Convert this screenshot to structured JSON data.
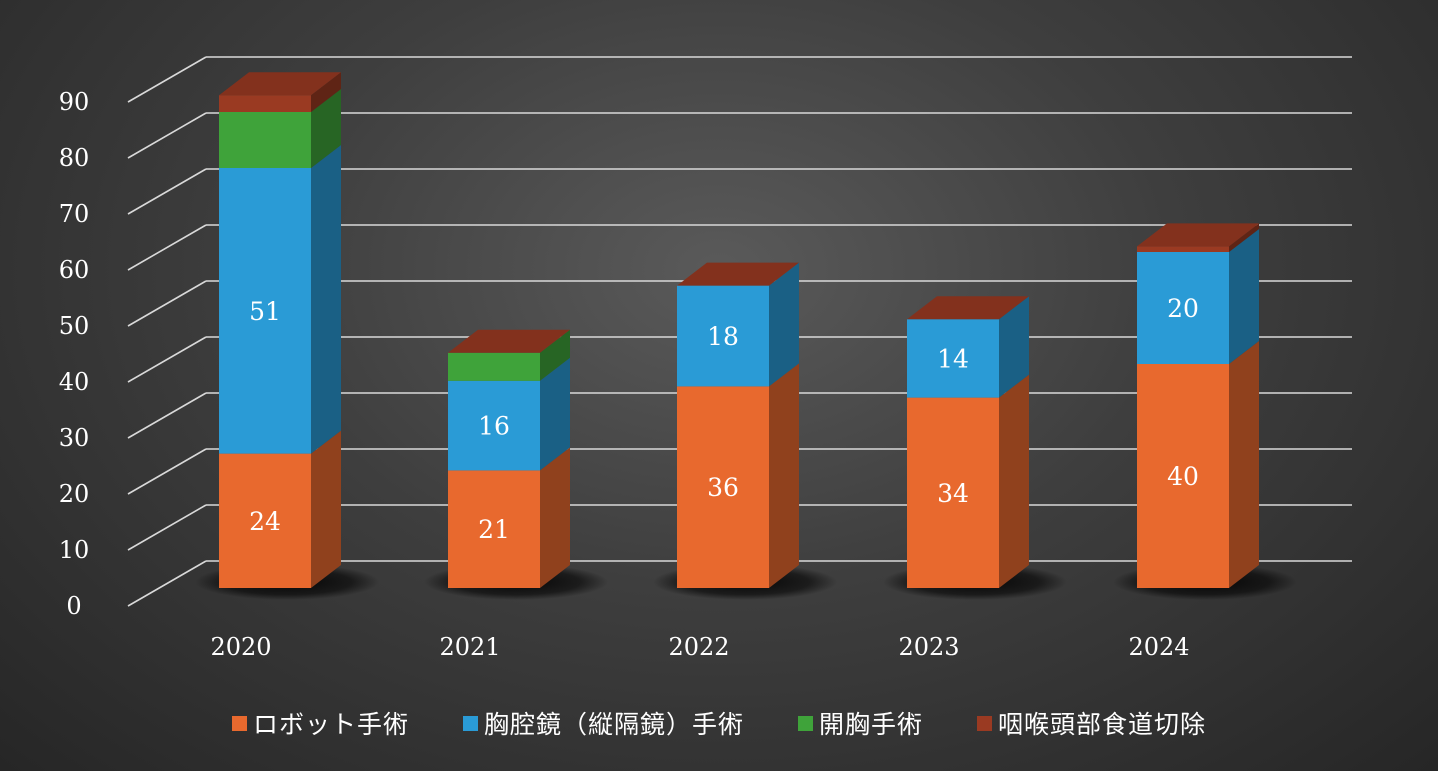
{
  "chart_data": {
    "type": "bar",
    "stacked": true,
    "three_d": true,
    "title": "",
    "xlabel": "",
    "ylabel": "",
    "ylim": [
      0,
      90
    ],
    "yticks": [
      0,
      10,
      20,
      30,
      40,
      50,
      60,
      70,
      80,
      90
    ],
    "grid": true,
    "legend_position": "bottom",
    "categories": [
      "2020",
      "2021",
      "2022",
      "2023",
      "2024"
    ],
    "series": [
      {
        "name": "ロボット手術",
        "color": "#e8692e",
        "values": [
          24,
          21,
          36,
          34,
          40
        ],
        "labels": [
          "24",
          "21",
          "36",
          "34",
          "40"
        ]
      },
      {
        "name": "胸腔鏡（縦隔鏡）手術",
        "color": "#2a9bd6",
        "values": [
          51,
          16,
          18,
          14,
          20
        ],
        "labels": [
          "51",
          "16",
          "18",
          "14",
          "20"
        ]
      },
      {
        "name": "開胸手術",
        "color": "#3fa33a",
        "values": [
          10,
          5,
          0,
          0,
          0
        ],
        "labels": [
          "",
          "",
          "",
          "",
          ""
        ]
      },
      {
        "name": "咽喉頭部食道切除",
        "color": "#9a3a22",
        "values": [
          3,
          0,
          0,
          0,
          1
        ],
        "labels": [
          "",
          "",
          "",
          "",
          ""
        ]
      }
    ]
  }
}
